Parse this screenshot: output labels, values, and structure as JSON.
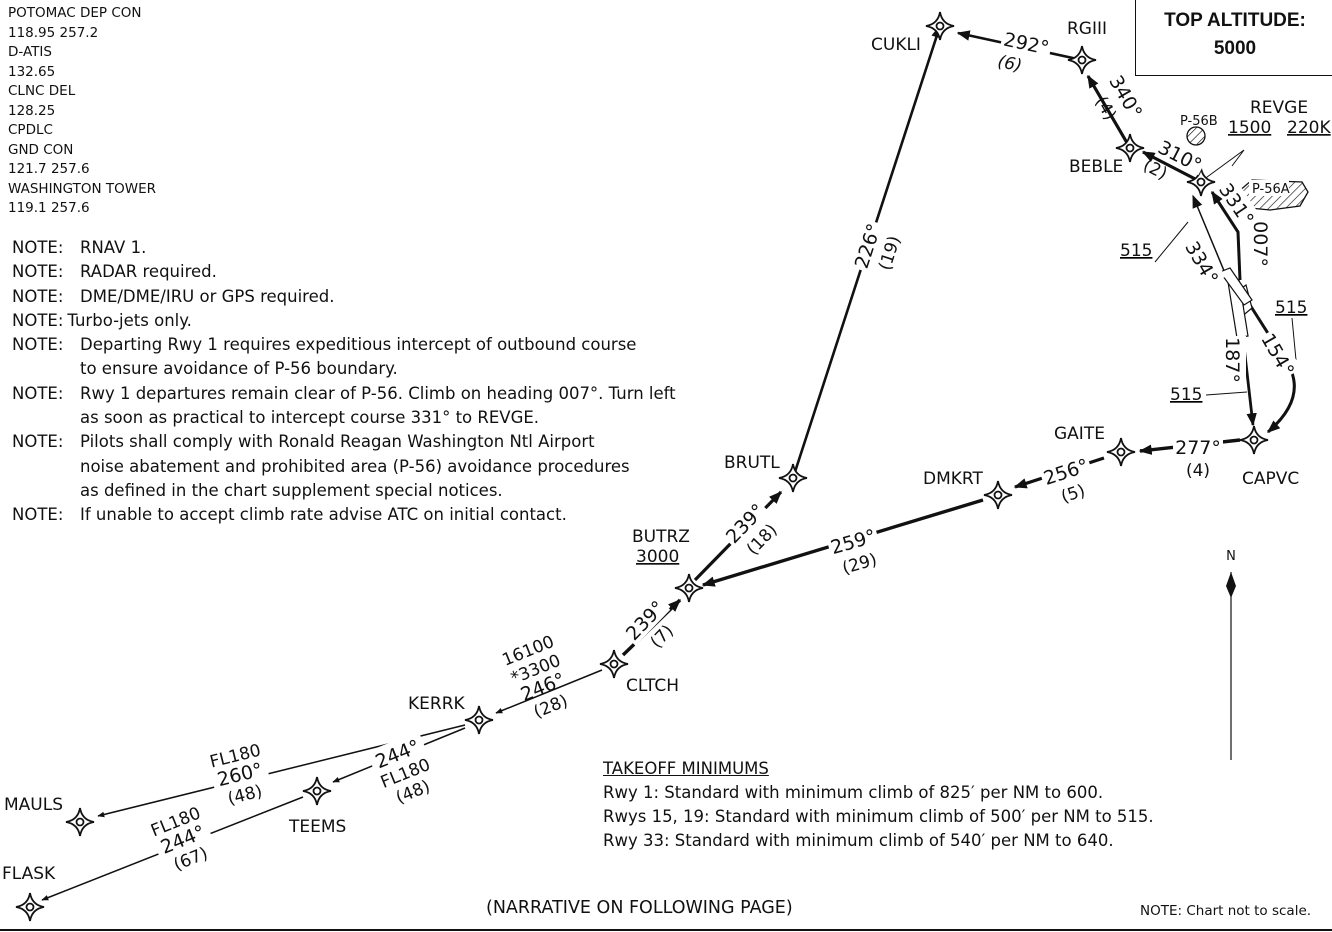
{
  "frequencies": [
    "POTOMAC DEP CON",
    "118.95  257.2",
    "D-ATIS",
    "132.65",
    "CLNC DEL",
    "128.25",
    "CPDLC",
    "GND CON",
    "121.7  257.6",
    "WASHINGTON TOWER",
    "119.1  257.6"
  ],
  "notes": [
    {
      "label": "NOTE:",
      "text": "RNAV 1."
    },
    {
      "label": "NOTE:",
      "text": "RADAR required."
    },
    {
      "label": "NOTE:",
      "text": "DME/DME/IRU or GPS required."
    },
    {
      "label": "NOTE:",
      "text": "Turbo-jets only."
    },
    {
      "label": "NOTE:",
      "text": "Departing Rwy 1 requires expeditious intercept of outbound course\nto ensure avoidance of P-56 boundary."
    },
    {
      "label": "NOTE:",
      "text": "Rwy 1 departures remain clear of P-56. Climb on heading 007°. Turn left\nas soon as practical to intercept course 331° to REVGE."
    },
    {
      "label": "NOTE:",
      "text": "Pilots shall comply with Ronald Reagan Washington Ntl Airport\nnoise abatement and prohibited area (P-56) avoidance procedures\nas defined in the chart supplement special notices."
    },
    {
      "label": "NOTE:",
      "text": "If unable to accept climb rate advise ATC on initial contact."
    }
  ],
  "top_altitude": {
    "label": "TOP ALTITUDE:",
    "value": "5000"
  },
  "takeoff_minimums": {
    "heading": "TAKEOFF MINIMUMS",
    "lines": [
      "Rwy 1:  Standard with minimum climb of 825′ per NM to 600.",
      "Rwys 15, 19:  Standard with minimum climb of 500′ per NM to 515.",
      "Rwy 33:  Standard with minimum climb of 540′ per NM to 640."
    ]
  },
  "footer": {
    "narrative": "(NARRATIVE ON FOLLOWING PAGE)",
    "scale_note": "NOTE:  Chart not to scale."
  },
  "north_label": "N",
  "prohibited_areas": {
    "p56a": "P-56A",
    "p56b": "P-56B"
  },
  "waypoints": {
    "cukli": "CUKLI",
    "rgiii": "RGIII",
    "beble": "BEBLE",
    "revge": "REVGE",
    "revge_alt": "1500",
    "revge_speed": "220K",
    "capvc": "CAPVC",
    "gaite": "GAITE",
    "dmkrt": "DMKRT",
    "brutl": "BRUTL",
    "butrz": "BUTRZ",
    "butrz_alt": "3000",
    "cltch": "CLTCH",
    "kerrk": "KERRK",
    "teems": "TEEMS",
    "mauls": "MAULS",
    "flask": "FLASK"
  },
  "legs": {
    "cukli_rgiii": {
      "course": "292°",
      "dist": "(6)"
    },
    "rgiii_beble": {
      "course": "340°",
      "dist": "(4)"
    },
    "beble_revge": {
      "course": "310°",
      "dist": "(2)"
    },
    "revge_in": {
      "course": "331°"
    },
    "rwy1": {
      "course": "007°"
    },
    "rwy33": {
      "course": "334°"
    },
    "rwy19": {
      "course": "187°"
    },
    "rwy15": {
      "course": "154°"
    },
    "capvc_gaite": {
      "course": "277°",
      "dist": "(4)"
    },
    "gaite_dmkrt": {
      "course": "256°",
      "dist": "(5)"
    },
    "dmkrt_butrz": {
      "course": "259°",
      "dist": "(29)"
    },
    "brutl_cukli": {
      "course": "226°",
      "dist": "(19)"
    },
    "butrz_brutl": {
      "course": "239°",
      "dist": "(18)"
    },
    "cltch_butrz": {
      "course": "239°",
      "dist": "(7)"
    },
    "kerrk_cltch": {
      "mea": "16100",
      "moca": "*3300",
      "course": "246°",
      "dist": "(28)"
    },
    "kerrk_mauls": {
      "fl": "FL180",
      "course": "260°",
      "dist": "(48)"
    },
    "kerrk_teems": {
      "course": "244°",
      "fl": "FL180",
      "dist": "(48)"
    },
    "teems_flask": {
      "fl": "FL180",
      "course": "244°",
      "dist": "(67)"
    }
  },
  "altitude_labels": {
    "alt_515_a": "515",
    "alt_515_b": "515",
    "alt_515_c": "515"
  }
}
